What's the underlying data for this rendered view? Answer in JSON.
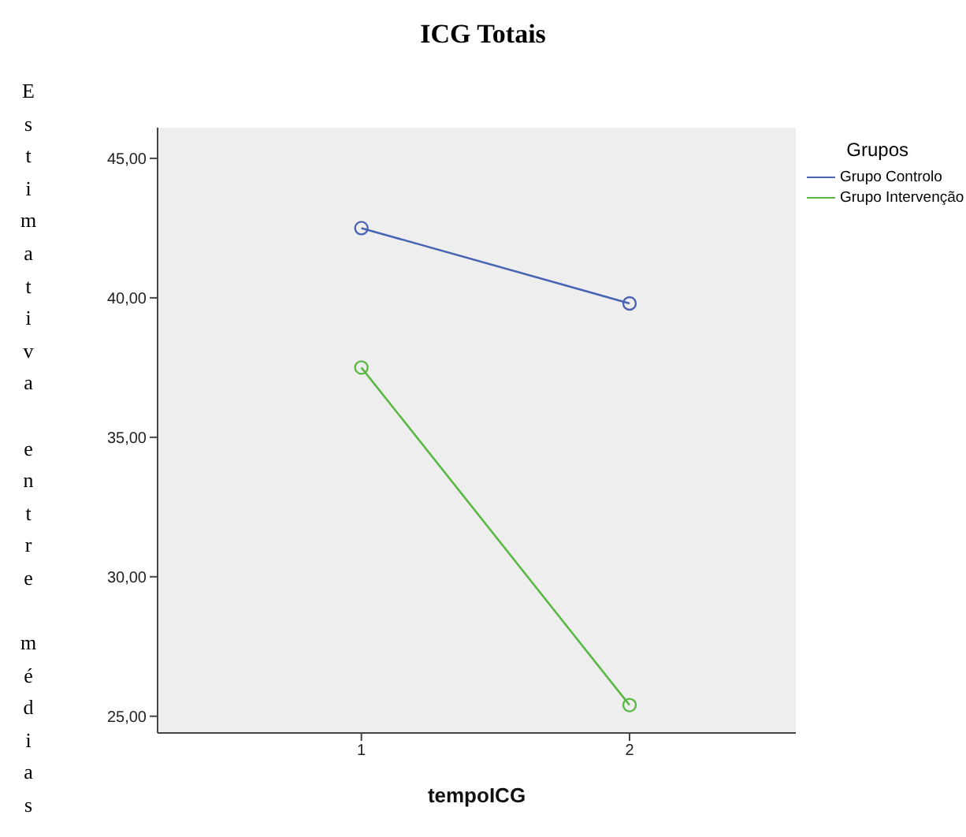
{
  "chart_data": {
    "type": "line",
    "title": "ICG Totais",
    "xlabel": "tempoICG",
    "ylabel": "Estimativa entre médias",
    "legend_title": "Grupos",
    "categories": [
      "1",
      "2"
    ],
    "series": [
      {
        "name": "Grupo Controlo",
        "color": "#4a64b4",
        "values": [
          42.5,
          39.8
        ]
      },
      {
        "name": "Grupo Intervenção",
        "color": "#5cb845",
        "values": [
          37.5,
          25.4
        ]
      }
    ],
    "ylim": [
      24.4,
      46.1
    ],
    "yticks": [
      {
        "value": 25,
        "label": "25,00"
      },
      {
        "value": 30,
        "label": "30,00"
      },
      {
        "value": 35,
        "label": "35,00"
      },
      {
        "value": 40,
        "label": "40,00"
      },
      {
        "value": 45,
        "label": "45,00"
      }
    ],
    "grid": false,
    "legend": "top right",
    "marker": "circle",
    "line_style": "solid"
  }
}
